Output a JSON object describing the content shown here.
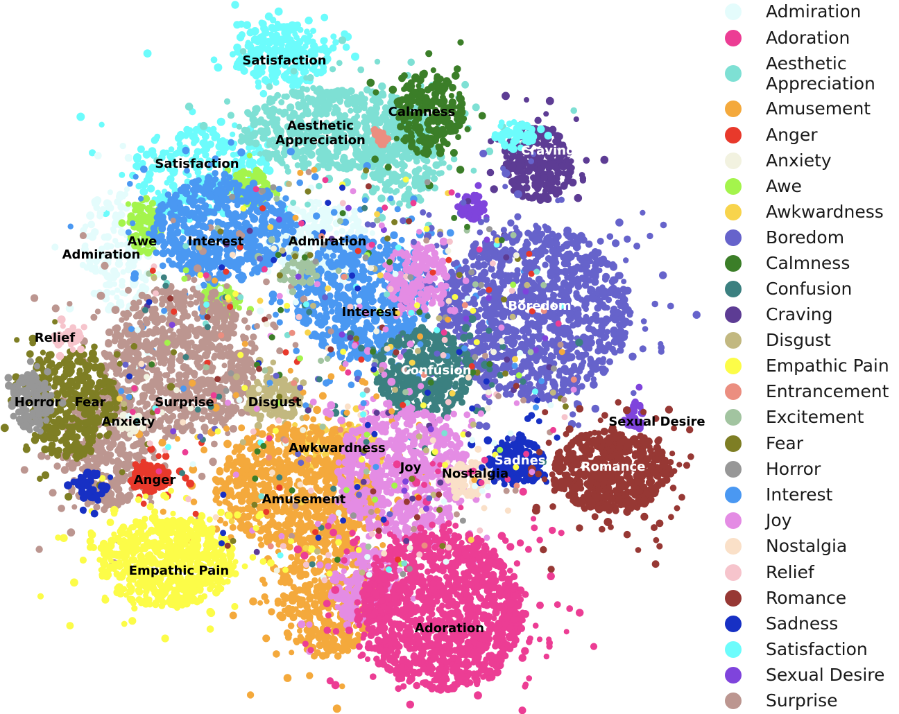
{
  "chart_data": {
    "type": "scatter",
    "title": "",
    "xlabel": "",
    "ylabel": "",
    "legend_position": "right",
    "grid": false,
    "axes_visible": false,
    "legend": [
      {
        "name": "Admiration",
        "color": "#e4fcfc"
      },
      {
        "name": "Adoration",
        "color": "#ec3d94"
      },
      {
        "name": "Aesthetic\nAppreciation",
        "color": "#7ee0d4"
      },
      {
        "name": "Amusement",
        "color": "#f4a93c"
      },
      {
        "name": "Anger",
        "color": "#e8392b"
      },
      {
        "name": "Anxiety",
        "color": "#f2f2e0"
      },
      {
        "name": "Awe",
        "color": "#a4f44c"
      },
      {
        "name": "Awkwardness",
        "color": "#f8d44c"
      },
      {
        "name": "Boredom",
        "color": "#6663cb"
      },
      {
        "name": "Calmness",
        "color": "#3b7e28"
      },
      {
        "name": "Confusion",
        "color": "#3b8080"
      },
      {
        "name": "Craving",
        "color": "#5d3c94"
      },
      {
        "name": "Disgust",
        "color": "#c2b880"
      },
      {
        "name": "Empathic Pain",
        "color": "#fcfc48"
      },
      {
        "name": "Entrancement",
        "color": "#eb8e80"
      },
      {
        "name": "Excitement",
        "color": "#a2c4a0"
      },
      {
        "name": "Fear",
        "color": "#7e7e24"
      },
      {
        "name": "Horror",
        "color": "#979797"
      },
      {
        "name": "Interest",
        "color": "#4a98f2"
      },
      {
        "name": "Joy",
        "color": "#e48ce4"
      },
      {
        "name": "Nostalgia",
        "color": "#fae0c8"
      },
      {
        "name": "Relief",
        "color": "#f6c4cc"
      },
      {
        "name": "Romance",
        "color": "#973834"
      },
      {
        "name": "Sadness",
        "color": "#1730c4"
      },
      {
        "name": "Satisfaction",
        "color": "#6cfcfc"
      },
      {
        "name": "Sexual Desire",
        "color": "#7f44dc"
      },
      {
        "name": "Surprise",
        "color": "#bc9690"
      }
    ],
    "cluster_labels": [
      {
        "text": "Satisfaction",
        "color": "#000000",
        "x": 0.0,
        "y": 0.0
      },
      {
        "text": "Aesthetic\nAppreciation",
        "color": "#000000",
        "x": 0.0,
        "y": 0.0
      },
      {
        "text": "Calmness",
        "color": "#000000",
        "x": 0.0,
        "y": 0.0
      },
      {
        "text": "Craving",
        "color": "#ffffff",
        "x": 0.0,
        "y": 0.0
      },
      {
        "text": "Satisfaction",
        "color": "#000000",
        "x": 0.0,
        "y": 0.0
      },
      {
        "text": "Awe",
        "color": "#000000",
        "x": 0.0,
        "y": 0.0
      },
      {
        "text": "Interest",
        "color": "#000000",
        "x": 0.0,
        "y": 0.0
      },
      {
        "text": "Admiration",
        "color": "#000000",
        "x": 0.0,
        "y": 0.0
      },
      {
        "text": "Admiration",
        "color": "#000000",
        "x": 0.0,
        "y": 0.0
      },
      {
        "text": "Boredom",
        "color": "#ffffff",
        "x": 0.0,
        "y": 0.0
      },
      {
        "text": "Interest",
        "color": "#000000",
        "x": 0.0,
        "y": 0.0
      },
      {
        "text": "Relief",
        "color": "#000000",
        "x": 0.0,
        "y": 0.0
      },
      {
        "text": "Confusion",
        "color": "#ffffff",
        "x": 0.0,
        "y": 0.0
      },
      {
        "text": "Horror",
        "color": "#000000",
        "x": 0.0,
        "y": 0.0
      },
      {
        "text": "Fear",
        "color": "#000000",
        "x": 0.0,
        "y": 0.0
      },
      {
        "text": "Surprise",
        "color": "#000000",
        "x": 0.0,
        "y": 0.0
      },
      {
        "text": "Disgust",
        "color": "#000000",
        "x": 0.0,
        "y": 0.0
      },
      {
        "text": "Anxiety",
        "color": "#000000",
        "x": 0.0,
        "y": 0.0
      },
      {
        "text": "Sexual Desire",
        "color": "#000000",
        "x": 0.0,
        "y": 0.0
      },
      {
        "text": "Awkwardness",
        "color": "#000000",
        "x": 0.0,
        "y": 0.0
      },
      {
        "text": "Romance",
        "color": "#ffffff",
        "x": 0.0,
        "y": 0.0
      },
      {
        "text": "Sadness",
        "color": "#ffffff",
        "x": 0.0,
        "y": 0.0
      },
      {
        "text": "Joy",
        "color": "#000000",
        "x": 0.0,
        "y": 0.0
      },
      {
        "text": "Nostalgia",
        "color": "#000000",
        "x": 0.0,
        "y": 0.0
      },
      {
        "text": "Anger",
        "color": "#000000",
        "x": 0.0,
        "y": 0.0
      },
      {
        "text": "Amusement",
        "color": "#000000",
        "x": 0.0,
        "y": 0.0
      },
      {
        "text": "Empathic Pain",
        "color": "#000000",
        "x": 0.0,
        "y": 0.0
      },
      {
        "text": "Adoration",
        "color": "#000000",
        "x": 0.0,
        "y": 0.0
      }
    ]
  }
}
